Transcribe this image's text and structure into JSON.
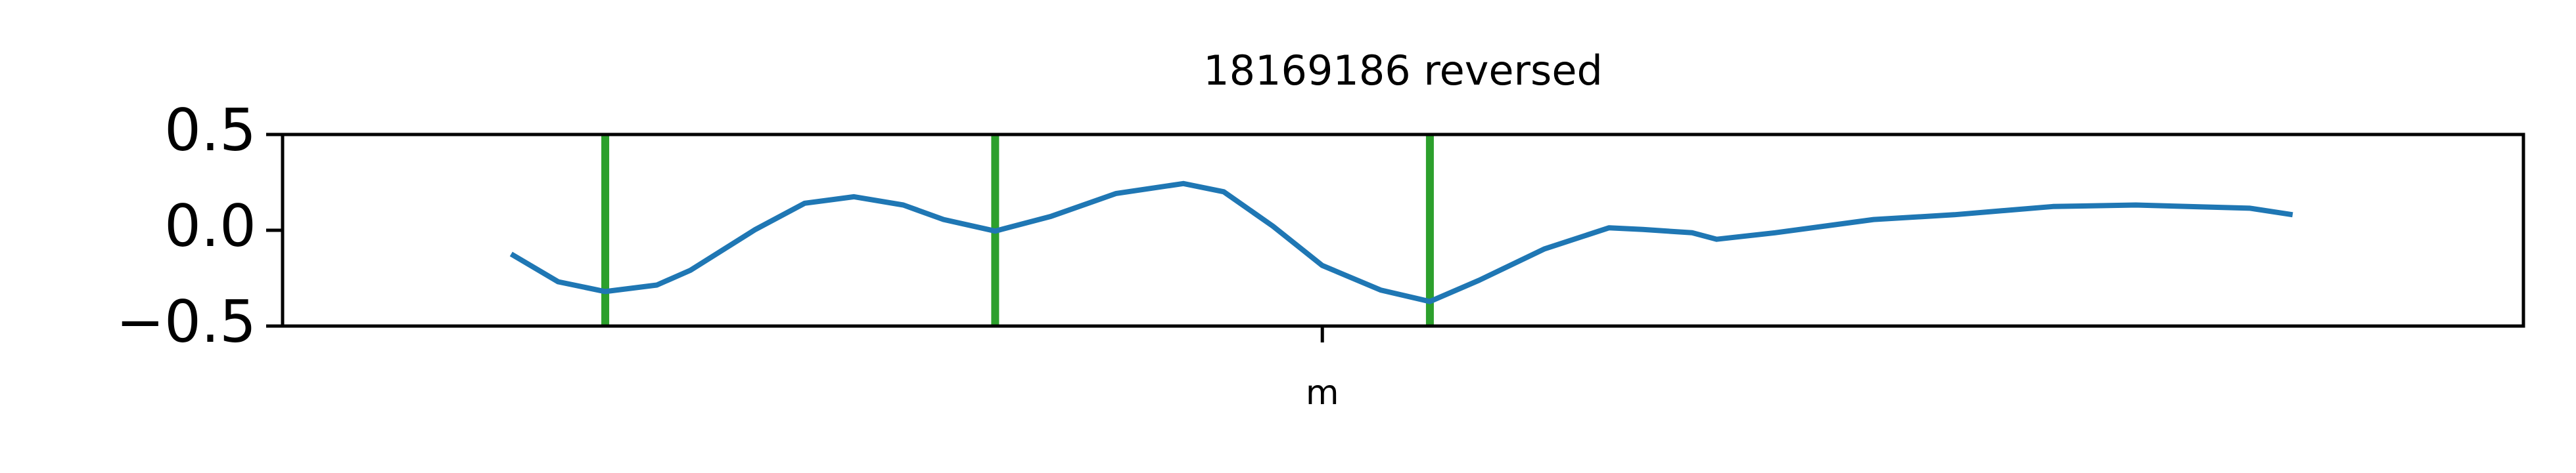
{
  "chart_data": {
    "type": "line",
    "title": "18169186 reversed",
    "x": [
      10.2,
      12.3,
      14.4,
      16.7,
      18.2,
      21.1,
      23.3,
      25.5,
      27.7,
      29.5,
      31.8,
      34.3,
      37.2,
      40.2,
      42.0,
      44.2,
      46.4,
      49.0,
      51.2,
      53.4,
      56.3,
      59.2,
      60.7,
      62.9,
      64.0,
      66.6,
      71.0,
      74.6,
      79.0,
      82.7,
      87.8,
      89.7
    ],
    "values": [
      -0.124,
      -0.269,
      -0.32,
      -0.286,
      -0.209,
      0.004,
      0.141,
      0.175,
      0.132,
      0.056,
      -0.004,
      0.073,
      0.192,
      0.244,
      0.201,
      0.021,
      -0.184,
      -0.312,
      -0.372,
      -0.261,
      -0.098,
      0.013,
      0.004,
      -0.013,
      -0.047,
      -0.013,
      0.056,
      0.081,
      0.124,
      0.132,
      0.115,
      0.081
    ],
    "color": "#1f77b4",
    "vlines": [
      14.4,
      31.8,
      51.2
    ],
    "vline_color": "#2ca02c",
    "xlim": [
      0,
      100
    ],
    "xticks": [
      {
        "value": 46.4,
        "label": "m"
      }
    ],
    "ylim": [
      -0.5,
      0.5
    ],
    "yticks": [
      0.5,
      {
        "value": 0.0,
        "label": "0.0"
      },
      {
        "value": -0.5,
        "label": "−0.5"
      }
    ]
  }
}
